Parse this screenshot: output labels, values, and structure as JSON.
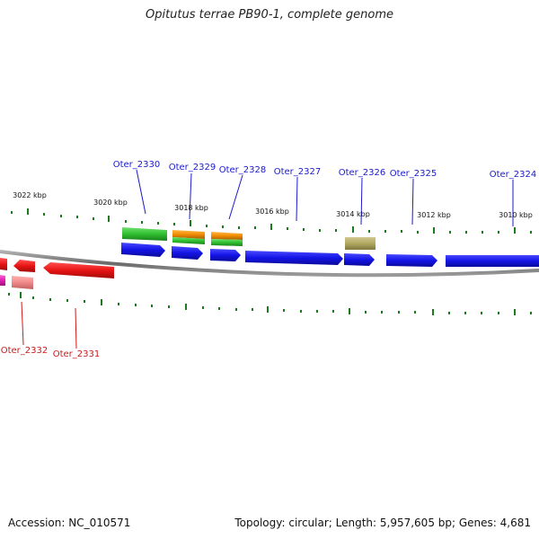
{
  "title": "Opitutus terrae PB90-1, complete genome",
  "footer": {
    "accession": "Accession: NC_010571",
    "stats": "Topology: circular; Length: 5,957,605 bp; Genes: 4,681"
  },
  "colors": {
    "backbone": "#7a7a7a",
    "tick": "#1e7a1e",
    "blue_label": "#1a1acc",
    "red_label": "#cc1a1a",
    "gene_blue": "#1414e6",
    "gene_green": "#2fbf2f",
    "gene_orange": "#f08c00",
    "gene_olive": "#b0a860",
    "gene_red": "#e81414",
    "gene_pink": "#f08a8a",
    "gene_magenta": "#e020b0"
  },
  "tick_labels": [
    "3022 kbp",
    "3020 kbp",
    "3018 kbp",
    "3016 kbp",
    "3014 kbp",
    "3012 kbp",
    "3010 kbp"
  ],
  "gene_labels_top": [
    "Oter_2330",
    "Oter_2329",
    "Oter_2328",
    "Oter_2327",
    "Oter_2326",
    "Oter_2325",
    "Oter_2324"
  ],
  "gene_labels_bottom": [
    "Oter_2332",
    "Oter_2331"
  ]
}
